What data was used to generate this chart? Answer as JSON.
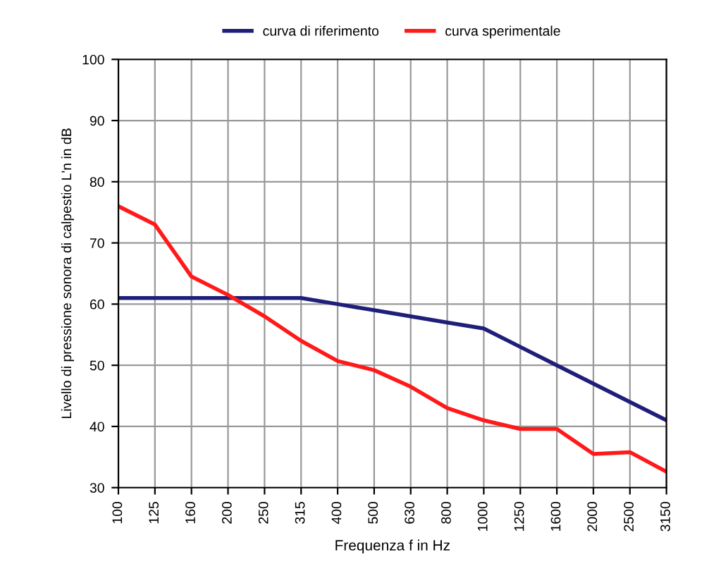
{
  "chart_data": {
    "type": "line",
    "xlabel": "Frequenza f in Hz",
    "ylabel": "Livello di pressione sonora di calpestio L'n in dB",
    "categories": [
      "100",
      "125",
      "160",
      "200",
      "250",
      "315",
      "400",
      "500",
      "630",
      "800",
      "1000",
      "1250",
      "1600",
      "2000",
      "2500",
      "3150"
    ],
    "series": [
      {
        "name": "curva di riferimento",
        "color": "#1f1f7a",
        "values": [
          61,
          61,
          61,
          61,
          61,
          61,
          60,
          59,
          58,
          57,
          56,
          53,
          50,
          47,
          44,
          41
        ]
      },
      {
        "name": "curva sperimentale",
        "color": "#ff1a1a",
        "values": [
          76,
          73,
          64.5,
          61.5,
          58,
          54,
          50.7,
          49.2,
          46.5,
          43,
          41,
          39.6,
          39.6,
          35.5,
          35.8,
          32.6
        ]
      }
    ],
    "ylim": [
      30,
      100
    ],
    "yticks": [
      30,
      40,
      50,
      60,
      70,
      80,
      90,
      100
    ],
    "grid": true,
    "legend": "top",
    "marker": "none",
    "line_style": "solid"
  }
}
